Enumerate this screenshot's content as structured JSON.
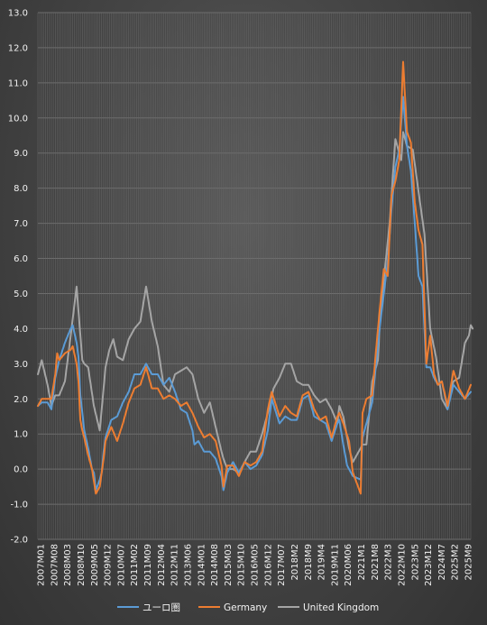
{
  "chart_data": {
    "type": "line",
    "title": "",
    "xlabel": "",
    "ylabel": "",
    "ylim": [
      -2.0,
      13.0
    ],
    "ytick_step": 1.0,
    "grid": true,
    "legend_position": "bottom",
    "x_start": "2007M01",
    "x_end": "2025M09",
    "x_tick_labels": [
      "2007M01",
      "2007M08",
      "2008M03",
      "2008M10",
      "2009M05",
      "2009M12",
      "2010M07",
      "2011M02",
      "2011M09",
      "2012M04",
      "2012M11",
      "2013M06",
      "2014M01",
      "2014M08",
      "2015M03",
      "2015M10",
      "2016M05",
      "2016M12",
      "2017M07",
      "2018M2",
      "2018M9",
      "2019M4",
      "2019M11",
      "2020M06",
      "2021M1",
      "2021M8",
      "2022M3",
      "2022M10",
      "2023M5",
      "2023M12",
      "2024M7",
      "2025M2",
      "2025M9"
    ],
    "series": [
      {
        "name": "ユーロ圏",
        "color": "#5b9bd5",
        "points": [
          [
            "2007M01",
            1.8
          ],
          [
            "2007M03",
            1.9
          ],
          [
            "2007M06",
            1.9
          ],
          [
            "2007M08",
            1.7
          ],
          [
            "2007M10",
            2.6
          ],
          [
            "2007M12",
            3.1
          ],
          [
            "2008M03",
            3.6
          ],
          [
            "2008M06",
            4.0
          ],
          [
            "2008M07",
            4.1
          ],
          [
            "2008M09",
            3.6
          ],
          [
            "2008M10",
            3.2
          ],
          [
            "2008M11",
            2.1
          ],
          [
            "2008M12",
            1.6
          ],
          [
            "2009M01",
            1.1
          ],
          [
            "2009M03",
            0.6
          ],
          [
            "2009M05",
            0.0
          ],
          [
            "2009M06",
            -0.1
          ],
          [
            "2009M07",
            -0.6
          ],
          [
            "2009M09",
            -0.3
          ],
          [
            "2009M10",
            -0.1
          ],
          [
            "2009M11",
            0.5
          ],
          [
            "2009M12",
            0.9
          ],
          [
            "2010M03",
            1.4
          ],
          [
            "2010M06",
            1.5
          ],
          [
            "2010M09",
            1.9
          ],
          [
            "2010M12",
            2.2
          ],
          [
            "2011M03",
            2.7
          ],
          [
            "2011M06",
            2.7
          ],
          [
            "2011M09",
            3.0
          ],
          [
            "2011M12",
            2.7
          ],
          [
            "2012M03",
            2.7
          ],
          [
            "2012M06",
            2.4
          ],
          [
            "2012M09",
            2.6
          ],
          [
            "2012M12",
            2.2
          ],
          [
            "2013M03",
            1.7
          ],
          [
            "2013M06",
            1.6
          ],
          [
            "2013M09",
            1.1
          ],
          [
            "2013M10",
            0.7
          ],
          [
            "2013M12",
            0.8
          ],
          [
            "2014M03",
            0.5
          ],
          [
            "2014M06",
            0.5
          ],
          [
            "2014M09",
            0.3
          ],
          [
            "2014M12",
            -0.2
          ],
          [
            "2015M01",
            -0.6
          ],
          [
            "2015M03",
            -0.1
          ],
          [
            "2015M06",
            0.2
          ],
          [
            "2015M09",
            -0.1
          ],
          [
            "2015M12",
            0.2
          ],
          [
            "2016M03",
            0.0
          ],
          [
            "2016M06",
            0.1
          ],
          [
            "2016M09",
            0.4
          ],
          [
            "2016M12",
            1.1
          ],
          [
            "2017M02",
            2.0
          ],
          [
            "2017M06",
            1.3
          ],
          [
            "2017M09",
            1.5
          ],
          [
            "2017M12",
            1.4
          ],
          [
            "2018M03",
            1.4
          ],
          [
            "2018M06",
            2.0
          ],
          [
            "2018M09",
            2.1
          ],
          [
            "2018M12",
            1.5
          ],
          [
            "2019M03",
            1.4
          ],
          [
            "2019M06",
            1.3
          ],
          [
            "2019M09",
            0.8
          ],
          [
            "2019M12",
            1.3
          ],
          [
            "2020M01",
            1.4
          ],
          [
            "2020M03",
            0.7
          ],
          [
            "2020M05",
            0.1
          ],
          [
            "2020M08",
            -0.2
          ],
          [
            "2020M12",
            -0.3
          ],
          [
            "2021M01",
            0.9
          ],
          [
            "2021M03",
            1.3
          ],
          [
            "2021M06",
            1.9
          ],
          [
            "2021M08",
            3.0
          ],
          [
            "2021M10",
            4.1
          ],
          [
            "2021M12",
            5.0
          ],
          [
            "2022M02",
            5.9
          ],
          [
            "2022M04",
            7.4
          ],
          [
            "2022M06",
            8.6
          ],
          [
            "2022M08",
            9.1
          ],
          [
            "2022M10",
            10.6
          ],
          [
            "2022M12",
            9.2
          ],
          [
            "2023M02",
            8.5
          ],
          [
            "2023M04",
            7.0
          ],
          [
            "2023M06",
            5.5
          ],
          [
            "2023M08",
            5.2
          ],
          [
            "2023M10",
            2.9
          ],
          [
            "2023M12",
            2.9
          ],
          [
            "2024M02",
            2.6
          ],
          [
            "2024M04",
            2.4
          ],
          [
            "2024M06",
            2.5
          ],
          [
            "2024M09",
            1.7
          ],
          [
            "2024M12",
            2.4
          ],
          [
            "2025M03",
            2.2
          ],
          [
            "2025M06",
            2.0
          ],
          [
            "2025M09",
            2.2
          ]
        ]
      },
      {
        "name": "Germany",
        "color": "#ed7d31",
        "points": [
          [
            "2007M01",
            1.8
          ],
          [
            "2007M03",
            2.0
          ],
          [
            "2007M06",
            2.0
          ],
          [
            "2007M08",
            2.0
          ],
          [
            "2007M10",
            2.7
          ],
          [
            "2007M11",
            3.3
          ],
          [
            "2007M12",
            3.1
          ],
          [
            "2008M03",
            3.3
          ],
          [
            "2008M06",
            3.4
          ],
          [
            "2008M07",
            3.5
          ],
          [
            "2008M09",
            3.0
          ],
          [
            "2008M10",
            2.5
          ],
          [
            "2008M11",
            1.4
          ],
          [
            "2008M12",
            1.1
          ],
          [
            "2009M01",
            0.9
          ],
          [
            "2009M03",
            0.4
          ],
          [
            "2009M05",
            0.0
          ],
          [
            "2009M07",
            -0.7
          ],
          [
            "2009M09",
            -0.5
          ],
          [
            "2009M11",
            0.3
          ],
          [
            "2009M12",
            0.8
          ],
          [
            "2010M03",
            1.2
          ],
          [
            "2010M06",
            0.8
          ],
          [
            "2010M09",
            1.3
          ],
          [
            "2010M12",
            1.9
          ],
          [
            "2011M03",
            2.3
          ],
          [
            "2011M06",
            2.4
          ],
          [
            "2011M09",
            2.9
          ],
          [
            "2011M12",
            2.3
          ],
          [
            "2012M03",
            2.3
          ],
          [
            "2012M06",
            2.0
          ],
          [
            "2012M09",
            2.1
          ],
          [
            "2012M12",
            2.0
          ],
          [
            "2013M03",
            1.8
          ],
          [
            "2013M06",
            1.9
          ],
          [
            "2013M09",
            1.6
          ],
          [
            "2013M12",
            1.2
          ],
          [
            "2014M03",
            0.9
          ],
          [
            "2014M06",
            1.0
          ],
          [
            "2014M09",
            0.8
          ],
          [
            "2014M12",
            0.1
          ],
          [
            "2015M01",
            -0.5
          ],
          [
            "2015M03",
            0.1
          ],
          [
            "2015M06",
            0.1
          ],
          [
            "2015M09",
            -0.2
          ],
          [
            "2015M12",
            0.2
          ],
          [
            "2016M03",
            0.1
          ],
          [
            "2016M06",
            0.2
          ],
          [
            "2016M09",
            0.5
          ],
          [
            "2016M12",
            1.7
          ],
          [
            "2017M02",
            2.2
          ],
          [
            "2017M06",
            1.5
          ],
          [
            "2017M09",
            1.8
          ],
          [
            "2017M12",
            1.6
          ],
          [
            "2018M03",
            1.5
          ],
          [
            "2018M06",
            2.1
          ],
          [
            "2018M09",
            2.2
          ],
          [
            "2018M12",
            1.7
          ],
          [
            "2019M03",
            1.4
          ],
          [
            "2019M06",
            1.5
          ],
          [
            "2019M09",
            0.9
          ],
          [
            "2019M12",
            1.5
          ],
          [
            "2020M01",
            1.6
          ],
          [
            "2020M03",
            1.3
          ],
          [
            "2020M06",
            0.8
          ],
          [
            "2020M08",
            -0.1
          ],
          [
            "2020M12",
            -0.7
          ],
          [
            "2021M01",
            1.6
          ],
          [
            "2021M03",
            2.0
          ],
          [
            "2021M06",
            2.1
          ],
          [
            "2021M08",
            3.4
          ],
          [
            "2021M10",
            4.6
          ],
          [
            "2021M12",
            5.7
          ],
          [
            "2022M02",
            5.5
          ],
          [
            "2022M04",
            7.8
          ],
          [
            "2022M06",
            8.2
          ],
          [
            "2022M08",
            8.8
          ],
          [
            "2022M10",
            11.6
          ],
          [
            "2022M12",
            9.6
          ],
          [
            "2023M02",
            9.3
          ],
          [
            "2023M04",
            7.6
          ],
          [
            "2023M06",
            6.8
          ],
          [
            "2023M08",
            6.4
          ],
          [
            "2023M10",
            3.0
          ],
          [
            "2023M12",
            3.8
          ],
          [
            "2024M02",
            2.7
          ],
          [
            "2024M04",
            2.4
          ],
          [
            "2024M06",
            2.5
          ],
          [
            "2024M09",
            1.8
          ],
          [
            "2024M12",
            2.8
          ],
          [
            "2025M03",
            2.3
          ],
          [
            "2025M06",
            2.0
          ],
          [
            "2025M09",
            2.4
          ]
        ]
      },
      {
        "name": "United Kingdom",
        "color": "#a5a5a5",
        "points": [
          [
            "2007M01",
            2.7
          ],
          [
            "2007M03",
            3.1
          ],
          [
            "2007M06",
            2.4
          ],
          [
            "2007M08",
            1.8
          ],
          [
            "2007M10",
            2.1
          ],
          [
            "2007M12",
            2.1
          ],
          [
            "2008M03",
            2.5
          ],
          [
            "2008M06",
            3.8
          ],
          [
            "2008M09",
            5.2
          ],
          [
            "2008M10",
            4.5
          ],
          [
            "2008M12",
            3.1
          ],
          [
            "2009M01",
            3.0
          ],
          [
            "2009M03",
            2.9
          ],
          [
            "2009M06",
            1.8
          ],
          [
            "2009M09",
            1.1
          ],
          [
            "2009M12",
            2.9
          ],
          [
            "2010M02",
            3.4
          ],
          [
            "2010M04",
            3.7
          ],
          [
            "2010M06",
            3.2
          ],
          [
            "2010M09",
            3.1
          ],
          [
            "2010M12",
            3.7
          ],
          [
            "2011M03",
            4.0
          ],
          [
            "2011M06",
            4.2
          ],
          [
            "2011M09",
            5.2
          ],
          [
            "2011M12",
            4.2
          ],
          [
            "2012M03",
            3.5
          ],
          [
            "2012M06",
            2.4
          ],
          [
            "2012M09",
            2.2
          ],
          [
            "2012M12",
            2.7
          ],
          [
            "2013M03",
            2.8
          ],
          [
            "2013M06",
            2.9
          ],
          [
            "2013M09",
            2.7
          ],
          [
            "2013M12",
            2.0
          ],
          [
            "2014M03",
            1.6
          ],
          [
            "2014M06",
            1.9
          ],
          [
            "2014M09",
            1.2
          ],
          [
            "2014M12",
            0.5
          ],
          [
            "2015M01",
            0.3
          ],
          [
            "2015M03",
            0.0
          ],
          [
            "2015M06",
            0.0
          ],
          [
            "2015M09",
            -0.1
          ],
          [
            "2015M12",
            0.2
          ],
          [
            "2016M03",
            0.5
          ],
          [
            "2016M06",
            0.5
          ],
          [
            "2016M09",
            1.0
          ],
          [
            "2016M12",
            1.6
          ],
          [
            "2017M03",
            2.3
          ],
          [
            "2017M06",
            2.6
          ],
          [
            "2017M09",
            3.0
          ],
          [
            "2017M12",
            3.0
          ],
          [
            "2018M03",
            2.5
          ],
          [
            "2018M06",
            2.4
          ],
          [
            "2018M09",
            2.4
          ],
          [
            "2018M12",
            2.1
          ],
          [
            "2019M03",
            1.9
          ],
          [
            "2019M06",
            2.0
          ],
          [
            "2019M09",
            1.7
          ],
          [
            "2019M12",
            1.3
          ],
          [
            "2020M01",
            1.8
          ],
          [
            "2020M03",
            1.5
          ],
          [
            "2020M06",
            0.6
          ],
          [
            "2020M08",
            0.2
          ],
          [
            "2020M12",
            0.6
          ],
          [
            "2021M01",
            0.7
          ],
          [
            "2021M03",
            0.7
          ],
          [
            "2021M06",
            2.5
          ],
          [
            "2021M09",
            3.1
          ],
          [
            "2021M10",
            4.2
          ],
          [
            "2021M12",
            5.4
          ],
          [
            "2022M03",
            7.0
          ],
          [
            "2022M06",
            9.4
          ],
          [
            "2022M09",
            8.8
          ],
          [
            "2022M10",
            9.6
          ],
          [
            "2022M12",
            9.2
          ],
          [
            "2023M03",
            9.1
          ],
          [
            "2023M06",
            7.9
          ],
          [
            "2023M09",
            6.7
          ],
          [
            "2023M12",
            4.0
          ],
          [
            "2024M03",
            3.2
          ],
          [
            "2024M06",
            2.0
          ],
          [
            "2024M09",
            1.7
          ],
          [
            "2024M12",
            2.5
          ],
          [
            "2025M03",
            2.6
          ],
          [
            "2025M06",
            3.6
          ],
          [
            "2025M08",
            3.8
          ],
          [
            "2025M09",
            4.1
          ],
          [
            "2025M10",
            4.0
          ]
        ]
      }
    ]
  }
}
